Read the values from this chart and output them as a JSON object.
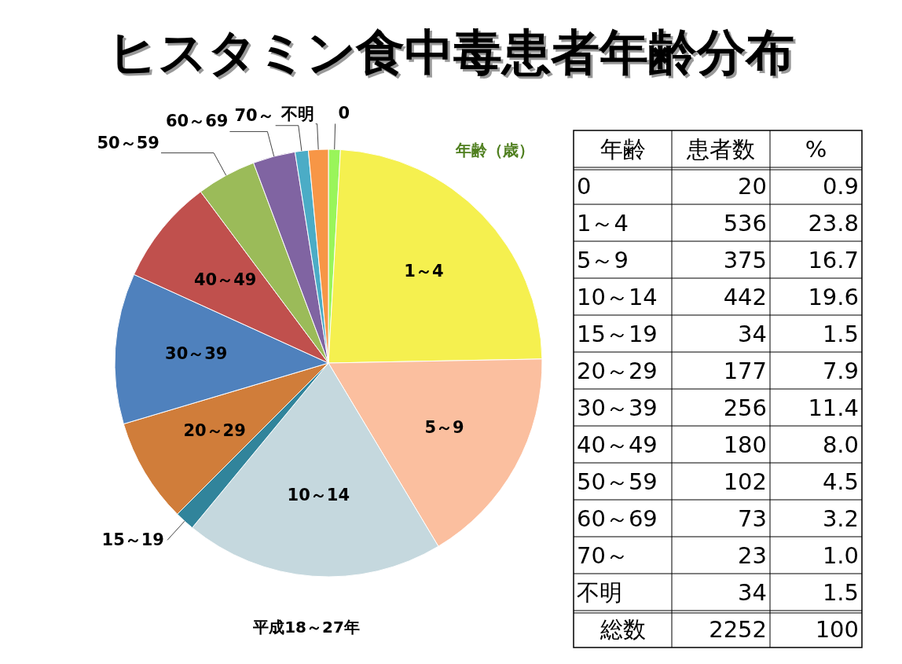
{
  "chart_data": [
    {
      "type": "pie",
      "title": "ヒスタミン食中毒患者年齢分布",
      "categories": [
        "0",
        "1～4",
        "5～9",
        "10～14",
        "15～19",
        "20～29",
        "30～39",
        "40～49",
        "50～59",
        "60～69",
        "70～",
        "不明"
      ],
      "values": [
        0.9,
        23.8,
        16.7,
        19.6,
        1.5,
        7.9,
        11.4,
        8.0,
        4.5,
        3.2,
        1.0,
        1.5
      ],
      "colors": [
        "#99f55a",
        "#f5f04f",
        "#fbbf9f",
        "#c5d8de",
        "#31849b",
        "#d07d3a",
        "#4f81bd",
        "#c0504d",
        "#9bbb59",
        "#8064a2",
        "#4bacc6",
        "#f79646"
      ],
      "annotations": [
        "年齢（歳）",
        "平成18～27年"
      ]
    },
    {
      "type": "other",
      "annotations": [
        "年齢",
        "患者数",
        "%",
        "0",
        "20",
        "0.9",
        "1～4",
        "536",
        "23.8",
        "5～9",
        "375",
        "16.7",
        "10～14",
        "442",
        "19.6",
        "15～19",
        "34",
        "1.5",
        "20～29",
        "177",
        "7.9",
        "30～39",
        "256",
        "11.4",
        "40～49",
        "180",
        "8.0",
        "50～59",
        "102",
        "4.5",
        "60～69",
        "73",
        "3.2",
        "70～",
        "23",
        "1.0",
        "不明",
        "34",
        "1.5",
        "総数",
        "2252",
        "100"
      ]
    }
  ]
}
